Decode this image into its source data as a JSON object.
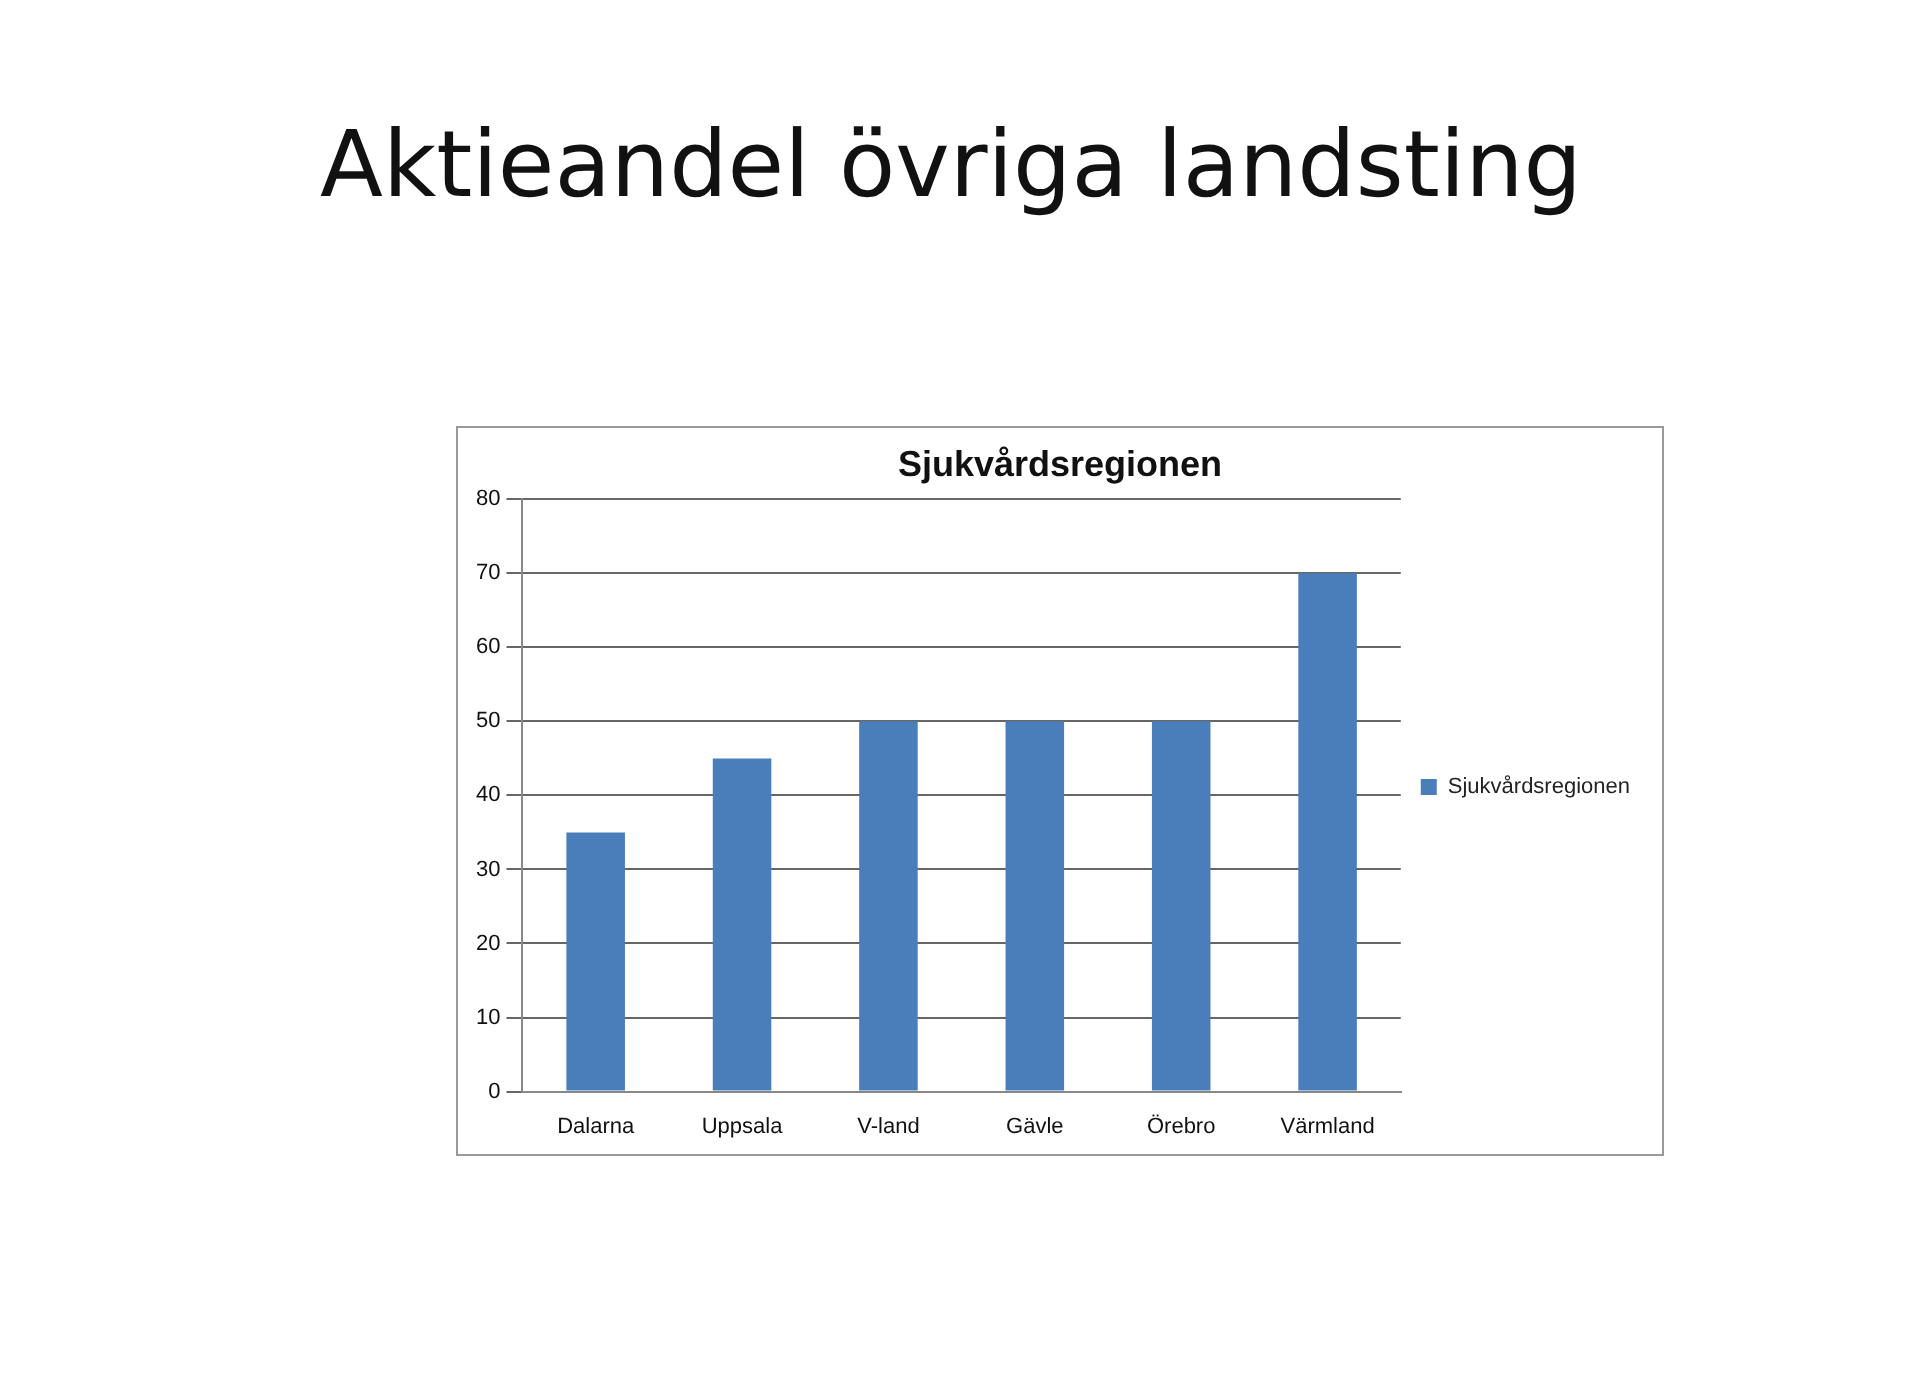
{
  "chart_data": {
    "type": "bar",
    "title": "Aktieandel övriga landsting",
    "subtitle": "Sjukvårdsregionen",
    "categories": [
      "Dalarna",
      "Uppsala",
      "V-land",
      "Gävle",
      "Örebro",
      "Värmland"
    ],
    "series": [
      {
        "name": "Sjukvårdsregionen",
        "color": "#4a7ebb",
        "values": [
          35,
          45,
          50,
          50,
          50,
          70
        ]
      }
    ],
    "ylim": [
      0,
      80
    ],
    "yticks": [
      0,
      10,
      20,
      30,
      40,
      50,
      60,
      70,
      80
    ],
    "grid": "y",
    "legend": "right"
  }
}
